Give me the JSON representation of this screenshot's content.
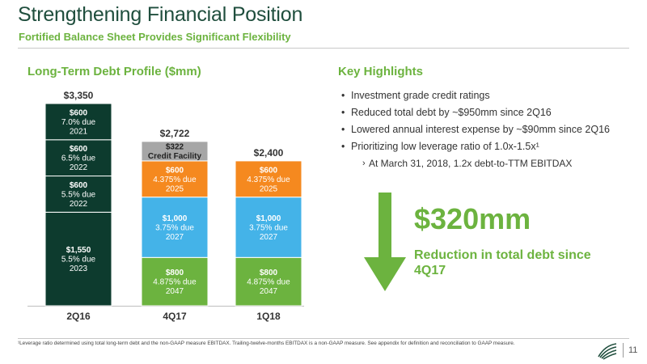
{
  "header": {
    "title": "Strengthening Financial Position",
    "subtitle": "Fortified Balance Sheet Provides Significant Flexibility"
  },
  "chart_section_title": "Long-Term Debt Profile ($mm)",
  "chart_data": {
    "type": "bar",
    "stacked": true,
    "title": "Long-Term Debt Profile ($mm)",
    "categories": [
      "2Q16",
      "4Q17",
      "1Q18"
    ],
    "totals": [
      "$3,350",
      "$2,722",
      "$2,400"
    ],
    "total_values": [
      3350,
      2722,
      2400
    ],
    "ylim": [
      0,
      3350
    ],
    "grid": false,
    "legend": "none",
    "stacks": [
      [
        {
          "value": 1550,
          "label": [
            "$1,550",
            "5.5% due",
            "2023"
          ],
          "color": "#0d3b2e"
        },
        {
          "value": 600,
          "label": [
            "$600",
            "5.5% due",
            "2022"
          ],
          "color": "#0d3b2e"
        },
        {
          "value": 600,
          "label": [
            "$600",
            "6.5% due",
            "2022"
          ],
          "color": "#0d3b2e"
        },
        {
          "value": 600,
          "label": [
            "$600",
            "7.0% due",
            "2021"
          ],
          "color": "#0d3b2e"
        }
      ],
      [
        {
          "value": 800,
          "label": [
            "$800",
            "4.875% due",
            "2047"
          ],
          "color": "#6cb33f"
        },
        {
          "value": 1000,
          "label": [
            "$1,000",
            "3.75% due",
            "2027"
          ],
          "color": "#44b3e8"
        },
        {
          "value": 600,
          "label": [
            "$600",
            "4.375% due",
            "2025"
          ],
          "color": "#f5891f"
        },
        {
          "value": 322,
          "label": [
            "$322",
            "Credit Facility"
          ],
          "color": "#a6a6a6"
        }
      ],
      [
        {
          "value": 800,
          "label": [
            "$800",
            "4.875% due",
            "2047"
          ],
          "color": "#6cb33f"
        },
        {
          "value": 1000,
          "label": [
            "$1,000",
            "3.75% due",
            "2027"
          ],
          "color": "#44b3e8"
        },
        {
          "value": 600,
          "label": [
            "$600",
            "4.375% due",
            "2025"
          ],
          "color": "#f5891f"
        }
      ]
    ]
  },
  "highlights": {
    "title": "Key Highlights",
    "bullet_symbol": "•",
    "sub_bullet_symbol": "›",
    "items": [
      "Investment grade credit ratings",
      "Reduced total debt by ~$950mm since 2Q16",
      "Lowered annual interest expense by ~$90mm since 2Q16",
      "Prioritizing low leverage ratio of 1.0x-1.5x¹"
    ],
    "sub_item": "At March 31, 2018, 1.2x debt-to-TTM EBITDAX"
  },
  "reduction": {
    "amount": "$320mm",
    "caption": "Reduction in total debt since 4Q17",
    "arrow_icon": "down-arrow-icon",
    "color": "#6cb33f"
  },
  "footer": {
    "footnote": "¹Leverage ratio determined using total long-term debt and the non-GAAP measure EBITDAX. Trailing-twelve-months EBITDAX is a non-GAAP measure. See appendix for definition and reconciliation to GAAP measure.",
    "page_number": "11",
    "logo_icon": "company-logo-icon"
  }
}
